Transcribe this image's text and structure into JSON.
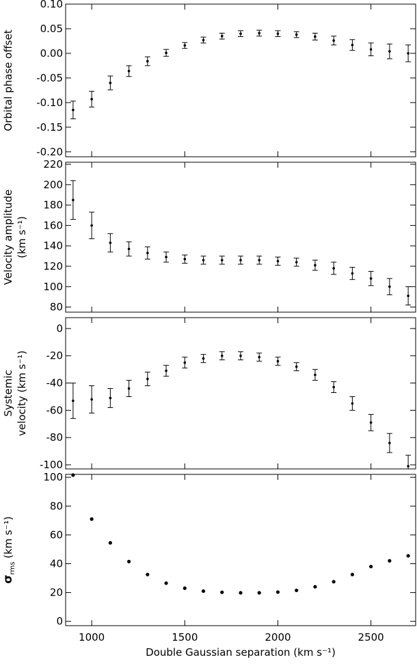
{
  "chart_data": {
    "type": "scatter",
    "x_label": "Double Gaussian separation (km s⁻¹)",
    "x": [
      900,
      1000,
      1100,
      1200,
      1300,
      1400,
      1500,
      1600,
      1700,
      1800,
      1900,
      2000,
      2100,
      2200,
      2300,
      2400,
      2500,
      2600,
      2700
    ],
    "x_ticks": [
      1000,
      1500,
      2000,
      2500
    ],
    "xlim": [
      860,
      2740
    ],
    "panels": [
      {
        "ylabel_lines": [
          "Orbital phase offset"
        ],
        "ylim": [
          -0.21,
          0.1
        ],
        "y_ticks": [
          -0.2,
          -0.15,
          -0.1,
          -0.05,
          0.0,
          0.05,
          0.1
        ],
        "y_tick_labels": [
          "-0.20",
          "-0.15",
          "-0.10",
          "-0.05",
          "0.00",
          "0.05",
          "0.10"
        ],
        "values": [
          -0.115,
          -0.093,
          -0.06,
          -0.036,
          -0.016,
          0.001,
          0.016,
          0.027,
          0.035,
          0.04,
          0.041,
          0.04,
          0.038,
          0.034,
          0.026,
          0.017,
          0.008,
          0.004,
          0.0
        ],
        "errors": [
          0.018,
          0.016,
          0.014,
          0.011,
          0.009,
          0.007,
          0.006,
          0.006,
          0.006,
          0.006,
          0.006,
          0.006,
          0.006,
          0.007,
          0.009,
          0.011,
          0.013,
          0.015,
          0.017
        ]
      },
      {
        "ylabel_lines": [
          "Velocity amplitude",
          "(km s⁻¹)"
        ],
        "ylim": [
          75,
          222
        ],
        "y_ticks": [
          80,
          100,
          120,
          140,
          160,
          180,
          200,
          220
        ],
        "y_tick_labels": [
          "80",
          "100",
          "120",
          "140",
          "160",
          "180",
          "200",
          "220"
        ],
        "values": [
          185,
          160,
          143,
          137,
          133,
          129,
          127,
          126,
          126,
          126,
          126,
          125,
          124,
          121,
          118,
          113,
          108,
          100,
          91
        ],
        "errors": [
          19,
          13,
          9,
          7,
          6,
          5,
          4,
          4,
          4,
          4,
          4,
          4,
          4,
          5,
          6,
          6,
          7,
          8,
          9
        ]
      },
      {
        "ylabel_lines": [
          "Systemic",
          "velocity (km s⁻¹)"
        ],
        "ylim": [
          -103,
          8
        ],
        "y_ticks": [
          -100,
          -80,
          -60,
          -40,
          -20,
          0
        ],
        "y_tick_labels": [
          "-100",
          "-80",
          "-60",
          "-40",
          "-20",
          "0"
        ],
        "values": [
          -53,
          -52,
          -51,
          -44,
          -37,
          -31,
          -25,
          -22,
          -20,
          -20,
          -21,
          -24,
          -28,
          -34,
          -43,
          -55,
          -69,
          -84,
          -101
        ],
        "errors": [
          13,
          10,
          7,
          6,
          5,
          4,
          4,
          3,
          3,
          3,
          3,
          3,
          3,
          4,
          4,
          5,
          6,
          7,
          8
        ]
      },
      {
        "ylabel_lines": [
          "σ (km s⁻¹)"
        ],
        "ylabel_sub": "rms",
        "ylim": [
          -3,
          102
        ],
        "y_ticks": [
          0,
          20,
          40,
          60,
          80,
          100
        ],
        "y_tick_labels": [
          "0",
          "20",
          "40",
          "60",
          "80",
          "100"
        ],
        "values": [
          102,
          71,
          54.5,
          41.5,
          32.5,
          26.5,
          23,
          21,
          20.2,
          19.8,
          19.8,
          20.3,
          21.5,
          24,
          27.5,
          32.5,
          38,
          42,
          45.5
        ],
        "errors": null
      }
    ]
  }
}
